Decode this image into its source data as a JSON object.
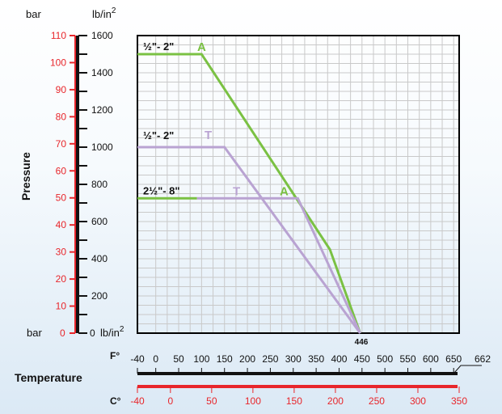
{
  "chart_data": {
    "type": "line",
    "y_axis_label": "Pressure",
    "x_axis_label": "Temperature",
    "y_unit_bar": "bar",
    "y_unit_psi": "lb/in",
    "y_unit_psi_exponent": "2",
    "zero_unit_bar": "bar",
    "zero_unit_psi": "lb/in",
    "zero_unit_psi_exponent": "2",
    "bar_ticks": [
      "0",
      "10",
      "20",
      "30",
      "40",
      "50",
      "60",
      "70",
      "80",
      "90",
      "100",
      "110"
    ],
    "psi_ticks": [
      "0",
      "200",
      "400",
      "600",
      "800",
      "1000",
      "1200",
      "1400",
      "1600"
    ],
    "f_label": "F°",
    "c_label": "C°",
    "f_ticks": [
      "-40",
      "0",
      "50",
      "100",
      "150",
      "200",
      "250",
      "300",
      "350",
      "400",
      "450",
      "500",
      "550",
      "600",
      "650"
    ],
    "f_end_tick": "662",
    "c_ticks": [
      "-40",
      "0",
      "50",
      "100",
      "150",
      "200",
      "250",
      "300",
      "350"
    ],
    "xlim_f": [
      -40,
      662
    ],
    "ylim_psi": [
      0,
      1600
    ],
    "max_temp_marker": "446",
    "grid": true,
    "series": [
      {
        "label_text": "½\"- 2\"",
        "marker": "A",
        "color": "#7ac143",
        "points": [
          [
            -40,
            1500
          ],
          [
            100,
            1500
          ],
          [
            380,
            450
          ],
          [
            446,
            0
          ]
        ]
      },
      {
        "label_text": "½\"- 2\"",
        "marker": "T",
        "color": "#b9a3d2",
        "points": [
          [
            -40,
            1000
          ],
          [
            150,
            1000
          ],
          [
            446,
            0
          ]
        ]
      },
      {
        "label_text": "2½\"- 8\"",
        "marker": "T",
        "marker2": "A",
        "color": "#b9a3d2",
        "color2": "#7ac143",
        "points": [
          [
            -40,
            725
          ],
          [
            310,
            725
          ],
          [
            446,
            0
          ]
        ]
      }
    ]
  }
}
